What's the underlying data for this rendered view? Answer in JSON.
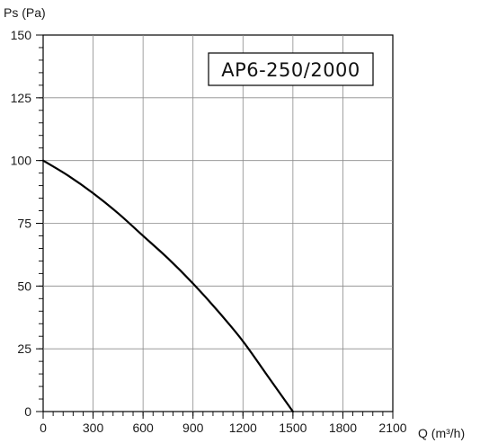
{
  "chart_data": {
    "type": "line",
    "title": "AP6-250/2000",
    "xlabel": "Q (m³/h)",
    "ylabel": "Ps (Pa)",
    "xlim": [
      0,
      2100
    ],
    "ylim": [
      0,
      150
    ],
    "xticks": [
      0,
      300,
      600,
      900,
      1200,
      1500,
      1800,
      2100
    ],
    "yticks": [
      0,
      25,
      50,
      75,
      100,
      125,
      150
    ],
    "grid": true,
    "series": [
      {
        "color": "#000000",
        "x": [
          0,
          150,
          300,
          450,
          600,
          750,
          900,
          1050,
          1200,
          1350,
          1500
        ],
        "y": [
          100,
          94,
          87,
          79,
          70,
          61,
          51,
          40,
          28,
          14,
          0
        ]
      }
    ]
  }
}
